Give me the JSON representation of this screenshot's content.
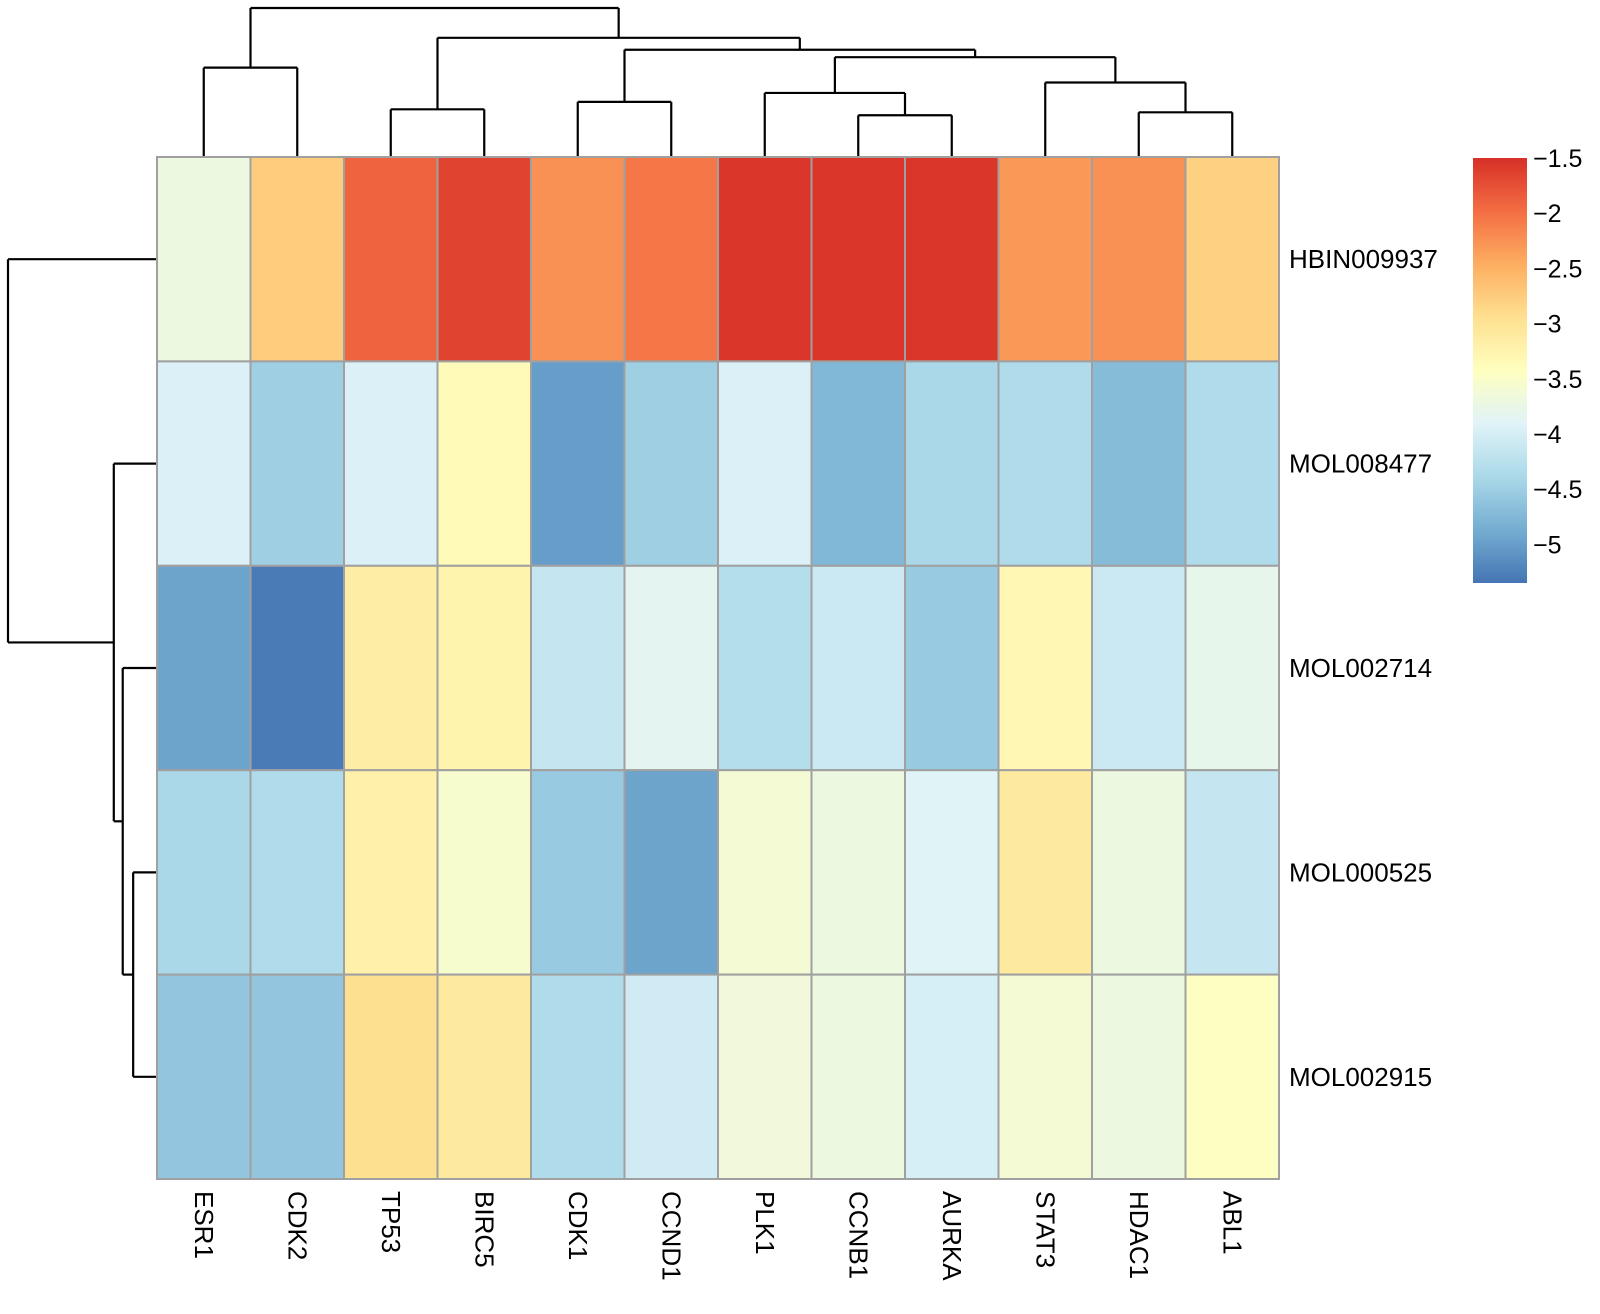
{
  "chart_data": {
    "type": "heatmap",
    "title": "",
    "xlabel": "",
    "ylabel": "",
    "rows": [
      "HBIN009937",
      "MOL008477",
      "MOL002714",
      "MOL000525",
      "MOL002915"
    ],
    "columns": [
      "ESR1",
      "CDK2",
      "TP53",
      "BIRC5",
      "CDK1",
      "CCND1",
      "PLK1",
      "CCNB1",
      "AURKA",
      "STAT3",
      "HDAC1",
      "ABL1"
    ],
    "values": [
      [
        -3.7,
        -2.75,
        -1.9,
        -1.65,
        -2.25,
        -2.05,
        -1.55,
        -1.55,
        -1.55,
        -2.3,
        -2.25,
        -2.8
      ],
      [
        -3.95,
        -4.5,
        -3.95,
        -3.35,
        -5.0,
        -4.5,
        -3.95,
        -4.75,
        -4.4,
        -4.35,
        -4.7,
        -4.35
      ],
      [
        -4.95,
        -5.3,
        -3.15,
        -3.25,
        -4.15,
        -3.85,
        -4.3,
        -4.1,
        -4.55,
        -3.3,
        -4.1,
        -3.8
      ],
      [
        -4.4,
        -4.35,
        -3.2,
        -3.55,
        -4.55,
        -4.95,
        -3.6,
        -3.7,
        -3.9,
        -3.1,
        -3.7,
        -4.15
      ],
      [
        -4.6,
        -4.6,
        -2.95,
        -3.1,
        -4.35,
        -4.05,
        -3.65,
        -3.7,
        -4.0,
        -3.6,
        -3.7,
        -3.45
      ]
    ],
    "color_scale": {
      "palette": "RdYlBu (reversed: high=red, low=blue)",
      "min": -5.35,
      "max": -1.5,
      "stops": [
        "#4575b4",
        "#74add1",
        "#abd9e9",
        "#e0f3f8",
        "#ffffbf",
        "#fee090",
        "#fdae61",
        "#f46d43",
        "#d73027"
      ],
      "ticks": [
        -1.5,
        -2,
        -2.5,
        -3,
        -3.5,
        -4,
        -4.5,
        -5
      ],
      "tick_labels": [
        "−1.5",
        "−2",
        "−2.5",
        "−3",
        "−3.5",
        "−4",
        "−4.5",
        "−5"
      ]
    },
    "cell_border_color": "#a0a0a0",
    "legend_position": "right",
    "column_dendrogram": {
      "leaf_order": [
        "ESR1",
        "CDK2",
        "TP53",
        "BIRC5",
        "CDK1",
        "CCND1",
        "PLK1",
        "CCNB1",
        "AURKA",
        "STAT3",
        "HDAC1",
        "ABL1"
      ],
      "merges": [
        {
          "left": "CCNB1",
          "right": "AURKA",
          "height": 0.28
        },
        {
          "left": "HDAC1",
          "right": "ABL1",
          "height": 0.3
        },
        {
          "left": "TP53",
          "right": "BIRC5",
          "height": 0.32
        },
        {
          "left": "CDK1",
          "right": "CCND1",
          "height": 0.37
        },
        {
          "left": "PLK1",
          "right": "merge:CCNB1+AURKA",
          "height": 0.43
        },
        {
          "left": "STAT3",
          "right": "merge:HDAC1+ABL1",
          "height": 0.5
        },
        {
          "left": "ESR1",
          "right": "CDK2",
          "height": 0.6
        },
        {
          "left": "merge:PLK1+CCNB1+AURKA",
          "right": "merge:STAT3+HDAC1+ABL1",
          "height": 0.67
        },
        {
          "left": "merge:CDK1+CCND1",
          "right": "merge:PLK1..ABL1",
          "height": 0.72
        },
        {
          "left": "merge:TP53+BIRC5",
          "right": "merge:CDK1..ABL1",
          "height": 0.8
        },
        {
          "left": "merge:ESR1+CDK2",
          "right": "merge:TP53..ABL1",
          "height": 1.0
        }
      ]
    },
    "row_dendrogram": {
      "leaf_order": [
        "HBIN009937",
        "MOL008477",
        "MOL002714",
        "MOL000525",
        "MOL002915"
      ],
      "merges": [
        {
          "left": "MOL000525",
          "right": "MOL002915",
          "height": 0.16
        },
        {
          "left": "MOL002714",
          "right": "merge:MOL000525+MOL002915",
          "height": 0.23
        },
        {
          "left": "MOL008477",
          "right": "merge:MOL002714..MOL002915",
          "height": 0.29
        },
        {
          "left": "HBIN009937",
          "right": "merge:MOL008477..MOL002915",
          "height": 1.0
        }
      ]
    }
  }
}
